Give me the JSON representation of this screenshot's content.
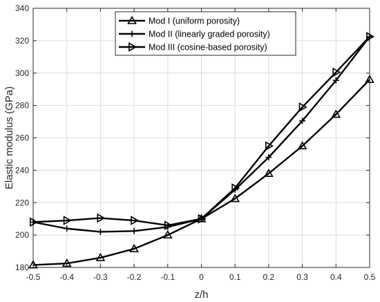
{
  "chart_data": {
    "type": "line",
    "title": "",
    "xlabel": "z/h",
    "ylabel": "Elastic modulus (GPa)",
    "x": [
      -0.5,
      -0.4,
      -0.3,
      -0.2,
      -0.1,
      0,
      0.1,
      0.2,
      0.3,
      0.4,
      0.5
    ],
    "xlim": [
      -0.5,
      0.5
    ],
    "ylim": [
      180,
      340
    ],
    "xticks": [
      "-0.5",
      "-0.4",
      "-0.3",
      "-0.2",
      "-0.1",
      "0",
      "0.1",
      "0.2",
      "0.3",
      "0.4",
      "0.5"
    ],
    "yticks": [
      "180",
      "200",
      "220",
      "240",
      "260",
      "280",
      "300",
      "320",
      "340"
    ],
    "grid": true,
    "legend_position": "top-center",
    "series": [
      {
        "name": "Mod I (uniform porosity)",
        "marker": "triangle-up",
        "values": [
          181.5,
          182.5,
          186,
          191.5,
          200,
          210,
          222.5,
          238,
          255,
          274.5,
          296
        ]
      },
      {
        "name": "Mod II (linearly graded porosity)",
        "marker": "plus",
        "values": [
          208,
          204,
          202,
          202.5,
          205,
          210,
          228,
          248,
          270.5,
          295.5,
          322.5
        ]
      },
      {
        "name": "Mod III (cosine-based porosity)",
        "marker": "triangle-right",
        "values": [
          208,
          209,
          210.5,
          209,
          206,
          210,
          229,
          255,
          279,
          300.5,
          322.5
        ]
      }
    ]
  }
}
